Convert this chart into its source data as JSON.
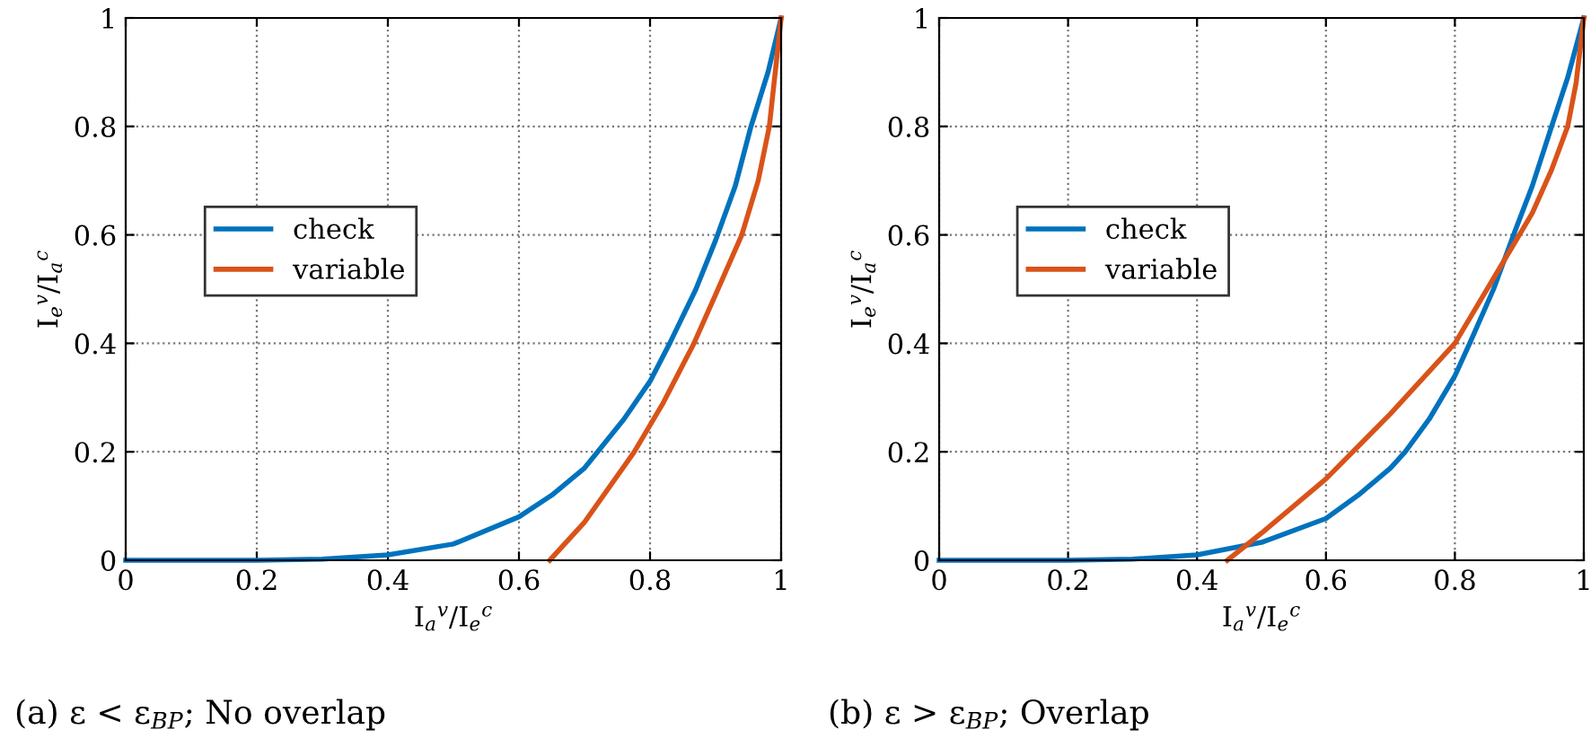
{
  "chart_data": [
    {
      "type": "line",
      "title": "(a) ε < ε$_{BP}$; No overlap",
      "xlabel": "I$_{a}$$^{v}$/I$_{e}$$^{c}$",
      "ylabel": "I$_{e}$$^{v}$/I$_{a}$$^{c}$",
      "xlim": [
        0,
        1
      ],
      "ylim": [
        0,
        1
      ],
      "xticks": [
        0,
        0.2,
        0.4,
        0.6,
        0.8,
        1
      ],
      "yticks": [
        0,
        0.2,
        0.4,
        0.6,
        0.8,
        1
      ],
      "grid": true,
      "legend": "left",
      "line_style": "solid",
      "marker": "none",
      "series": [
        {
          "name": "check",
          "color": "#0072bd",
          "x": [
            0,
            0.2,
            0.3,
            0.4,
            0.5,
            0.6,
            0.65,
            0.7,
            0.72,
            0.76,
            0.8,
            0.83,
            0.87,
            0.9,
            0.93,
            0.954,
            0.98,
            1
          ],
          "values": [
            0,
            0,
            0.002,
            0.01,
            0.03,
            0.08,
            0.12,
            0.17,
            0.2,
            0.26,
            0.33,
            0.4,
            0.5,
            0.59,
            0.69,
            0.8,
            0.9,
            1
          ]
        },
        {
          "name": "variable",
          "color": "#d95319",
          "x": [
            0.647,
            0.7,
            0.776,
            0.82,
            0.867,
            0.9,
            0.94,
            0.965,
            0.982,
            1
          ],
          "values": [
            0,
            0.07,
            0.2,
            0.29,
            0.4,
            0.49,
            0.6,
            0.7,
            0.8,
            1
          ]
        }
      ]
    },
    {
      "type": "line",
      "title": "(b) ε > ε$_{BP}$; Overlap",
      "xlabel": "I$_{a}$$^{v}$/I$_{e}$$^{c}$",
      "ylabel": "I$_{e}$$^{v}$/I$_{a}$$^{c}$",
      "xlim": [
        0,
        1
      ],
      "ylim": [
        0,
        1
      ],
      "xticks": [
        0,
        0.2,
        0.4,
        0.6,
        0.8,
        1
      ],
      "yticks": [
        0,
        0.2,
        0.4,
        0.6,
        0.8,
        1
      ],
      "grid": true,
      "legend": "left",
      "line_style": "solid",
      "marker": "none",
      "series": [
        {
          "name": "check",
          "color": "#0072bd",
          "x": [
            0,
            0.2,
            0.3,
            0.4,
            0.5,
            0.6,
            0.65,
            0.7,
            0.723,
            0.76,
            0.8,
            0.823,
            0.86,
            0.891,
            0.92,
            0.95,
            0.975,
            1
          ],
          "values": [
            0,
            0,
            0.002,
            0.01,
            0.033,
            0.077,
            0.12,
            0.17,
            0.2,
            0.26,
            0.34,
            0.4,
            0.5,
            0.6,
            0.69,
            0.8,
            0.89,
            1
          ]
        },
        {
          "name": "variable",
          "color": "#d95319",
          "x": [
            0.447,
            0.5,
            0.6,
            0.7,
            0.8,
            0.88,
            0.92,
            0.95,
            0.975,
            0.988,
            1
          ],
          "values": [
            0,
            0.05,
            0.15,
            0.27,
            0.4,
            0.56,
            0.64,
            0.72,
            0.8,
            0.88,
            1
          ]
        }
      ]
    }
  ]
}
